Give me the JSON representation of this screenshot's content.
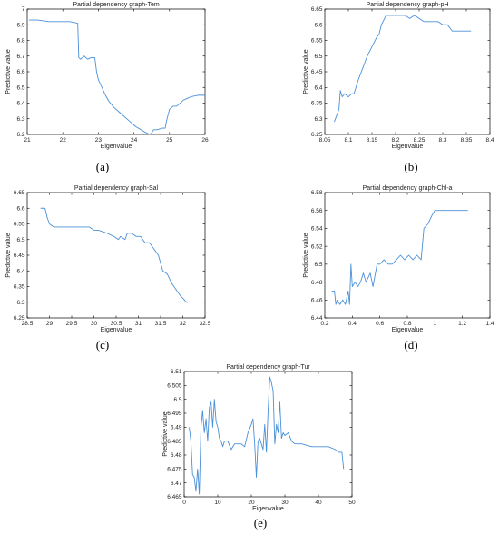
{
  "chart_data": [
    {
      "type": "line",
      "title": "Partial dependency graph-Tem",
      "xlabel": "Eigenvalue",
      "ylabel": "Predictive value",
      "panel_label": "(a)",
      "xlim": [
        21,
        26
      ],
      "ylim": [
        6.2,
        7
      ],
      "xticks": [
        "21",
        "22",
        "23",
        "24",
        "25",
        "26"
      ],
      "yticks": [
        "6.2",
        "6.3",
        "6.4",
        "6.5",
        "6.6",
        "6.7",
        "6.8",
        "6.9",
        "7"
      ],
      "grid": false,
      "color": "#4a90d9",
      "series": [
        {
          "x": [
            21.05,
            21.3,
            21.6,
            21.9,
            22.2,
            22.42,
            22.45,
            22.5,
            22.6,
            22.7,
            22.8,
            22.9,
            22.95,
            23.0,
            23.1,
            23.2,
            23.3,
            23.45,
            23.6,
            23.75,
            23.9,
            24.05,
            24.2,
            24.35,
            24.45,
            24.5,
            24.55,
            24.65,
            24.8,
            24.88,
            24.92,
            25.0,
            25.1,
            25.2,
            25.4,
            25.6,
            25.8,
            26.0
          ],
          "y": [
            6.93,
            6.93,
            6.92,
            6.92,
            6.92,
            6.91,
            6.69,
            6.68,
            6.7,
            6.68,
            6.69,
            6.69,
            6.6,
            6.55,
            6.5,
            6.45,
            6.41,
            6.37,
            6.34,
            6.31,
            6.28,
            6.25,
            6.23,
            6.21,
            6.2,
            6.21,
            6.23,
            6.23,
            6.24,
            6.24,
            6.29,
            6.36,
            6.38,
            6.38,
            6.42,
            6.44,
            6.45,
            6.45
          ]
        }
      ]
    },
    {
      "type": "line",
      "title": "Partial dependency graph-pH",
      "xlabel": "Eigenvalue",
      "ylabel": "Predictive value",
      "panel_label": "(b)",
      "xlim": [
        8.05,
        8.4
      ],
      "ylim": [
        6.25,
        6.65
      ],
      "xticks": [
        "8.05",
        "8.1",
        "8.15",
        "8.2",
        "8.25",
        "8.3",
        "8.35",
        "8.4"
      ],
      "yticks": [
        "6.25",
        "6.3",
        "6.35",
        "6.4",
        "6.45",
        "6.5",
        "6.55",
        "6.6",
        "6.65"
      ],
      "grid": false,
      "color": "#4a90d9",
      "series": [
        {
          "x": [
            8.07,
            8.075,
            8.08,
            8.083,
            8.087,
            8.092,
            8.1,
            8.107,
            8.112,
            8.12,
            8.13,
            8.14,
            8.15,
            8.16,
            8.165,
            8.17,
            8.18,
            8.19,
            8.2,
            8.22,
            8.23,
            8.24,
            8.26,
            8.27,
            8.28,
            8.29,
            8.3,
            8.31,
            8.32,
            8.34,
            8.36
          ],
          "y": [
            6.29,
            6.31,
            6.33,
            6.39,
            6.37,
            6.38,
            6.37,
            6.38,
            6.38,
            6.42,
            6.46,
            6.5,
            6.53,
            6.56,
            6.57,
            6.6,
            6.63,
            6.63,
            6.63,
            6.63,
            6.62,
            6.63,
            6.61,
            6.61,
            6.61,
            6.61,
            6.6,
            6.6,
            6.58,
            6.58,
            6.58
          ]
        }
      ]
    },
    {
      "type": "line",
      "title": "Partial dependency graph-Sal",
      "xlabel": "Eigenvalue",
      "ylabel": "Predictive value",
      "panel_label": "(c)",
      "xlim": [
        28.5,
        32.5
      ],
      "ylim": [
        6.25,
        6.65
      ],
      "xticks": [
        "28.5",
        "29",
        "29.5",
        "30",
        "30.5",
        "31",
        "31.5",
        "32",
        "32.5"
      ],
      "yticks": [
        "6.25",
        "6.3",
        "6.35",
        "6.4",
        "6.45",
        "6.5",
        "6.55",
        "6.6",
        "6.65"
      ],
      "grid": false,
      "color": "#4a90d9",
      "series": [
        {
          "x": [
            28.8,
            28.9,
            28.95,
            29.0,
            29.1,
            29.3,
            29.6,
            29.9,
            30.0,
            30.1,
            30.3,
            30.45,
            30.55,
            30.6,
            30.7,
            30.75,
            30.85,
            30.95,
            31.05,
            31.15,
            31.25,
            31.35,
            31.45,
            31.55,
            31.65,
            31.75,
            31.85,
            31.95,
            32.02,
            32.08,
            32.12
          ],
          "y": [
            6.6,
            6.6,
            6.57,
            6.55,
            6.54,
            6.54,
            6.54,
            6.54,
            6.53,
            6.53,
            6.52,
            6.51,
            6.5,
            6.51,
            6.5,
            6.52,
            6.52,
            6.51,
            6.51,
            6.49,
            6.49,
            6.47,
            6.45,
            6.4,
            6.39,
            6.36,
            6.34,
            6.32,
            6.31,
            6.3,
            6.3
          ]
        }
      ]
    },
    {
      "type": "line",
      "title": "Partial dependency graph-Chl-a",
      "xlabel": "Eigenvalue",
      "ylabel": "Predictive value",
      "panel_label": "(d)",
      "xlim": [
        0.2,
        1.4
      ],
      "ylim": [
        6.44,
        6.58
      ],
      "xticks": [
        "0.2",
        "0.4",
        "0.6",
        "0.8",
        "1",
        "1.2",
        "1.4"
      ],
      "yticks": [
        "6.44",
        "6.46",
        "6.48",
        "6.5",
        "6.52",
        "6.54",
        "6.56",
        "6.58"
      ],
      "grid": false,
      "color": "#4a90d9",
      "series": [
        {
          "x": [
            0.25,
            0.27,
            0.28,
            0.29,
            0.31,
            0.33,
            0.35,
            0.37,
            0.38,
            0.39,
            0.4,
            0.42,
            0.44,
            0.46,
            0.48,
            0.5,
            0.53,
            0.55,
            0.58,
            0.6,
            0.63,
            0.66,
            0.69,
            0.72,
            0.75,
            0.78,
            0.81,
            0.84,
            0.87,
            0.9,
            0.92,
            0.95,
            0.98,
            1.0,
            1.05,
            1.1,
            1.15,
            1.2,
            1.24
          ],
          "y": [
            6.47,
            6.47,
            6.455,
            6.46,
            6.455,
            6.46,
            6.455,
            6.47,
            6.455,
            6.5,
            6.475,
            6.48,
            6.475,
            6.48,
            6.49,
            6.48,
            6.49,
            6.475,
            6.5,
            6.5,
            6.505,
            6.5,
            6.5,
            6.505,
            6.51,
            6.505,
            6.51,
            6.505,
            6.51,
            6.505,
            6.54,
            6.545,
            6.555,
            6.56,
            6.56,
            6.56,
            6.56,
            6.56,
            6.56
          ]
        }
      ]
    },
    {
      "type": "line",
      "title": "Partial dependency graph-Tur",
      "xlabel": "Eigenvalue",
      "ylabel": "Predictive value",
      "panel_label": "(e)",
      "xlim": [
        0,
        50
      ],
      "ylim": [
        6.465,
        6.51
      ],
      "xticks": [
        "0",
        "10",
        "20",
        "30",
        "40",
        "50"
      ],
      "yticks": [
        "6.465",
        "6.47",
        "6.475",
        "6.48",
        "6.485",
        "6.49",
        "6.495",
        "6.5",
        "6.505",
        "6.51"
      ],
      "grid": false,
      "color": "#4a90d9",
      "series": [
        {
          "x": [
            1.5,
            2.0,
            2.5,
            3.0,
            3.5,
            4.0,
            4.5,
            5.0,
            5.5,
            6.0,
            6.5,
            7.0,
            7.5,
            8.0,
            8.5,
            9.0,
            9.5,
            10.0,
            10.5,
            11.0,
            11.5,
            12.0,
            13.0,
            14.0,
            15.0,
            16.0,
            17.0,
            18.0,
            19.0,
            20.0,
            20.5,
            21.0,
            21.5,
            22.0,
            22.5,
            23.0,
            23.5,
            24.0,
            24.5,
            25.0,
            25.5,
            26.0,
            26.5,
            27.0,
            27.5,
            28.0,
            28.5,
            29.0,
            29.5,
            30.0,
            31.0,
            32.0,
            33.0,
            35.0,
            38.0,
            41.0,
            43.0,
            45.0,
            46.0,
            47.0,
            47.5
          ],
          "y": [
            6.49,
            6.485,
            6.473,
            6.472,
            6.467,
            6.475,
            6.466,
            6.49,
            6.496,
            6.488,
            6.493,
            6.485,
            6.497,
            6.499,
            6.49,
            6.5,
            6.492,
            6.49,
            6.486,
            6.485,
            6.483,
            6.485,
            6.485,
            6.482,
            6.484,
            6.484,
            6.484,
            6.483,
            6.488,
            6.491,
            6.493,
            6.484,
            6.472,
            6.485,
            6.486,
            6.484,
            6.482,
            6.491,
            6.481,
            6.496,
            6.508,
            6.506,
            6.503,
            6.484,
            6.491,
            6.488,
            6.499,
            6.486,
            6.488,
            6.487,
            6.488,
            6.485,
            6.484,
            6.484,
            6.483,
            6.483,
            6.483,
            6.482,
            6.481,
            6.481,
            6.475
          ]
        }
      ]
    }
  ]
}
